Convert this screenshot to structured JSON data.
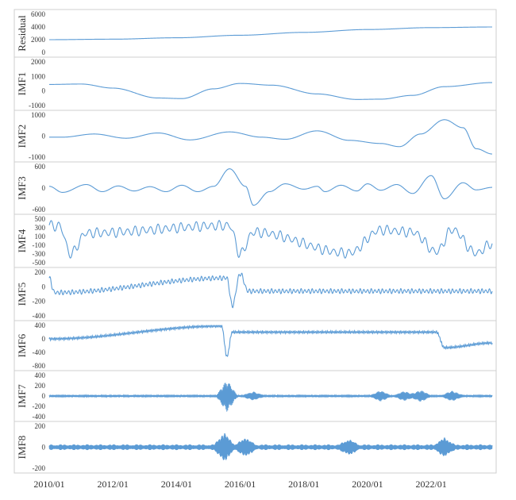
{
  "chart_data": {
    "type": "line",
    "x_axis": {
      "start": "2010/01",
      "end": "2023/12",
      "tick_labels": [
        "2010/01",
        "2012/01",
        "2014/01",
        "2016/01",
        "2018/01",
        "2020/01",
        "2022/01"
      ]
    },
    "line_color": "#5b9bd5",
    "panels": [
      {
        "name": "Residual",
        "yticks": [
          "6000",
          "4000",
          "2000",
          "0"
        ],
        "ylim": [
          0,
          6000
        ],
        "kind": "trend",
        "points": [
          [
            "2010/01",
            2000
          ],
          [
            "2012/01",
            2080
          ],
          [
            "2014/01",
            2300
          ],
          [
            "2016/01",
            2700
          ],
          [
            "2018/01",
            3150
          ],
          [
            "2020/01",
            3600
          ],
          [
            "2022/01",
            3900
          ],
          [
            "2023/12",
            4000
          ]
        ]
      },
      {
        "name": "IMF1",
        "yticks": [
          "2000",
          "1000",
          "0",
          "-1000"
        ],
        "ylim": [
          -1000,
          2000
        ],
        "kind": "smooth",
        "points": [
          [
            "2010/01",
            450
          ],
          [
            "2011/01",
            480
          ],
          [
            "2012/01",
            200
          ],
          [
            "2013/06",
            -480
          ],
          [
            "2014/03",
            -520
          ],
          [
            "2015/03",
            150
          ],
          [
            "2016/01",
            520
          ],
          [
            "2017/01",
            400
          ],
          [
            "2018/06",
            -200
          ],
          [
            "2019/09",
            -580
          ],
          [
            "2020/06",
            -560
          ],
          [
            "2021/06",
            -300
          ],
          [
            "2022/06",
            300
          ],
          [
            "2023/12",
            580
          ]
        ]
      },
      {
        "name": "IMF2",
        "yticks": [
          "1000",
          "0",
          "-1000"
        ],
        "ylim": [
          -1000,
          1000
        ],
        "kind": "smooth",
        "points": [
          [
            "2010/01",
            -50
          ],
          [
            "2010/06",
            -50
          ],
          [
            "2011/06",
            100
          ],
          [
            "2012/06",
            -100
          ],
          [
            "2013/06",
            150
          ],
          [
            "2014/06",
            -180
          ],
          [
            "2015/09",
            200
          ],
          [
            "2016/09",
            -50
          ],
          [
            "2017/06",
            -150
          ],
          [
            "2018/06",
            250
          ],
          [
            "2019/06",
            -200
          ],
          [
            "2020/06",
            -350
          ],
          [
            "2021/01",
            -500
          ],
          [
            "2021/09",
            100
          ],
          [
            "2022/06",
            780
          ],
          [
            "2023/01",
            400
          ],
          [
            "2023/06",
            -600
          ],
          [
            "2023/12",
            -850
          ]
        ]
      },
      {
        "name": "IMF3",
        "yticks": [
          "600",
          "0",
          "-600"
        ],
        "ylim": [
          -600,
          600
        ],
        "kind": "smooth",
        "points": [
          [
            "2010/01",
            50
          ],
          [
            "2010/06",
            -120
          ],
          [
            "2011/03",
            100
          ],
          [
            "2011/09",
            -100
          ],
          [
            "2012/03",
            60
          ],
          [
            "2012/09",
            -80
          ],
          [
            "2013/03",
            40
          ],
          [
            "2013/09",
            -100
          ],
          [
            "2014/03",
            80
          ],
          [
            "2014/09",
            -100
          ],
          [
            "2015/03",
            50
          ],
          [
            "2015/09",
            540
          ],
          [
            "2016/03",
            50
          ],
          [
            "2016/06",
            -480
          ],
          [
            "2016/12",
            -100
          ],
          [
            "2017/06",
            120
          ],
          [
            "2018/01",
            -30
          ],
          [
            "2018/06",
            50
          ],
          [
            "2018/09",
            -100
          ],
          [
            "2019/03",
            80
          ],
          [
            "2019/09",
            -80
          ],
          [
            "2020/01",
            120
          ],
          [
            "2020/06",
            -60
          ],
          [
            "2020/12",
            100
          ],
          [
            "2021/06",
            -150
          ],
          [
            "2022/01",
            350
          ],
          [
            "2022/06",
            -300
          ],
          [
            "2023/01",
            150
          ],
          [
            "2023/06",
            -50
          ],
          [
            "2023/12",
            20
          ]
        ]
      },
      {
        "name": "IMF4",
        "yticks": [
          "500",
          "300",
          "100",
          "-100",
          "-300",
          "-500"
        ],
        "ylim": [
          -500,
          500
        ],
        "kind": "oscillation",
        "amplitude": 120,
        "cycles": 58,
        "points": [
          [
            "2010/01",
            360
          ],
          [
            "2010/05",
            330
          ],
          [
            "2010/09",
            -300
          ],
          [
            "2011/03",
            180
          ],
          [
            "2015/09",
            350
          ],
          [
            "2016/01",
            -300
          ],
          [
            "2016/06",
            200
          ],
          [
            "2019/06",
            -280
          ],
          [
            "2020/06",
            250
          ],
          [
            "2021/06",
            200
          ],
          [
            "2022/03",
            -250
          ],
          [
            "2022/09",
            260
          ],
          [
            "2023/06",
            -280
          ],
          [
            "2023/12",
            -60
          ]
        ]
      },
      {
        "name": "IMF5",
        "yticks": [
          "200",
          "0",
          "-200",
          "-400"
        ],
        "ylim": [
          -400,
          200
        ],
        "kind": "oscillation",
        "amplitude": 35,
        "cycles": 120,
        "points": [
          [
            "2010/01",
            120
          ],
          [
            "2010/03",
            -80
          ],
          [
            "2015/08",
            120
          ],
          [
            "2015/10",
            -260
          ],
          [
            "2016/01",
            180
          ],
          [
            "2016/04",
            -60
          ],
          [
            "2023/12",
            -60
          ]
        ]
      },
      {
        "name": "IMF6",
        "yticks": [
          "400",
          "0",
          "-400",
          "-800"
        ],
        "ylim": [
          -800,
          400
        ],
        "kind": "oscillation",
        "amplitude": 45,
        "cycles": 260,
        "points": [
          [
            "2010/01",
            0
          ],
          [
            "2015/06",
            380
          ],
          [
            "2015/08",
            -520
          ],
          [
            "2015/10",
            200
          ],
          [
            "2022/03",
            200
          ],
          [
            "2022/06",
            -260
          ],
          [
            "2023/12",
            -120
          ]
        ]
      },
      {
        "name": "IMF7",
        "yticks": [
          "400",
          "200",
          "0",
          "-200",
          "-400"
        ],
        "ylim": [
          -450,
          450
        ],
        "kind": "noise",
        "amplitude": 25,
        "cycles": 520,
        "bursts": [
          [
            "2015/08",
            330
          ],
          [
            "2016/06",
            80
          ],
          [
            "2020/06",
            100
          ],
          [
            "2021/03",
            90
          ],
          [
            "2021/09",
            110
          ],
          [
            "2022/09",
            100
          ]
        ]
      },
      {
        "name": "IMF8",
        "yticks": [
          "200",
          "0",
          "-200"
        ],
        "ylim": [
          -260,
          260
        ],
        "kind": "noise",
        "amplitude": 35,
        "cycles": 900,
        "bursts": [
          [
            "2015/07",
            150
          ],
          [
            "2016/03",
            90
          ],
          [
            "2019/06",
            70
          ],
          [
            "2022/06",
            90
          ]
        ]
      }
    ]
  }
}
